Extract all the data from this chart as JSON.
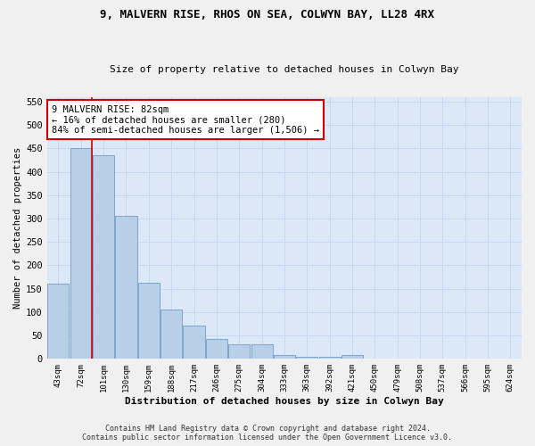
{
  "title1": "9, MALVERN RISE, RHOS ON SEA, COLWYN BAY, LL28 4RX",
  "title2": "Size of property relative to detached houses in Colwyn Bay",
  "xlabel": "Distribution of detached houses by size in Colwyn Bay",
  "ylabel": "Number of detached properties",
  "categories": [
    "43sqm",
    "72sqm",
    "101sqm",
    "130sqm",
    "159sqm",
    "188sqm",
    "217sqm",
    "246sqm",
    "275sqm",
    "304sqm",
    "333sqm",
    "363sqm",
    "392sqm",
    "421sqm",
    "450sqm",
    "479sqm",
    "508sqm",
    "537sqm",
    "566sqm",
    "595sqm",
    "624sqm"
  ],
  "values": [
    161,
    450,
    435,
    305,
    163,
    105,
    72,
    43,
    32,
    32,
    9,
    5,
    5,
    8,
    1,
    1,
    1,
    0,
    0,
    0,
    1
  ],
  "bar_color": "#b8cfe8",
  "bar_edge_color": "#6090c0",
  "grid_color": "#c8d8ee",
  "background_color": "#dce8f8",
  "vline_x": 1.5,
  "vline_color": "#cc0000",
  "annotation_text": "9 MALVERN RISE: 82sqm\n← 16% of detached houses are smaller (280)\n84% of semi-detached houses are larger (1,506) →",
  "annotation_box_color": "#ffffff",
  "annotation_edge_color": "#cc0000",
  "ylim": [
    0,
    560
  ],
  "yticks": [
    0,
    50,
    100,
    150,
    200,
    250,
    300,
    350,
    400,
    450,
    500,
    550
  ],
  "footer": "Contains HM Land Registry data © Crown copyright and database right 2024.\nContains public sector information licensed under the Open Government Licence v3.0."
}
